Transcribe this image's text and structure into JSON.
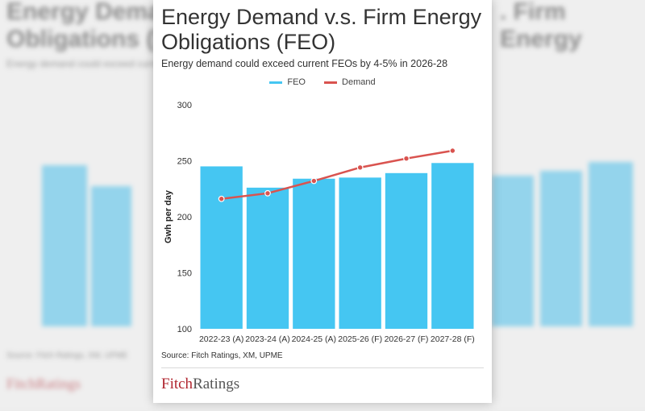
{
  "header": {
    "title": "Energy Demand v.s. Firm Energy Obligations (FEO)",
    "subtitle": "Energy demand could exceed current FEOs by 4-5% in 2026-28"
  },
  "legend": {
    "feo": "FEO",
    "demand": "Demand"
  },
  "colors": {
    "feo": "#45c6f2",
    "demand": "#d9534f",
    "brand": "#b0252f"
  },
  "chart_data": {
    "type": "bar",
    "title": "Energy Demand v.s. Firm Energy Obligations (FEO)",
    "subtitle": "Energy demand could exceed current FEOs by 4-5% in 2026-28",
    "categories": [
      "2022-23 (A)",
      "2023-24 (A)",
      "2024-25 (A)",
      "2025-26 (F)",
      "2026-27 (F)",
      "2027-28 (F)"
    ],
    "series": [
      {
        "name": "FEO",
        "type": "bar",
        "values": [
          245,
          226,
          234,
          235,
          239,
          248
        ]
      },
      {
        "name": "Demand",
        "type": "line",
        "values": [
          216,
          221,
          232,
          244,
          252,
          259
        ]
      }
    ],
    "ylabel": "Gwh per day",
    "xlabel": "",
    "ylim": [
      100,
      300
    ],
    "yticks": [
      100,
      150,
      200,
      250,
      300
    ],
    "grid": false,
    "legend": "top-center"
  },
  "footer": {
    "source": "Source: Fitch Ratings, XM, UPME",
    "logo_fitch": "Fitch",
    "logo_ratings": "Ratings"
  }
}
